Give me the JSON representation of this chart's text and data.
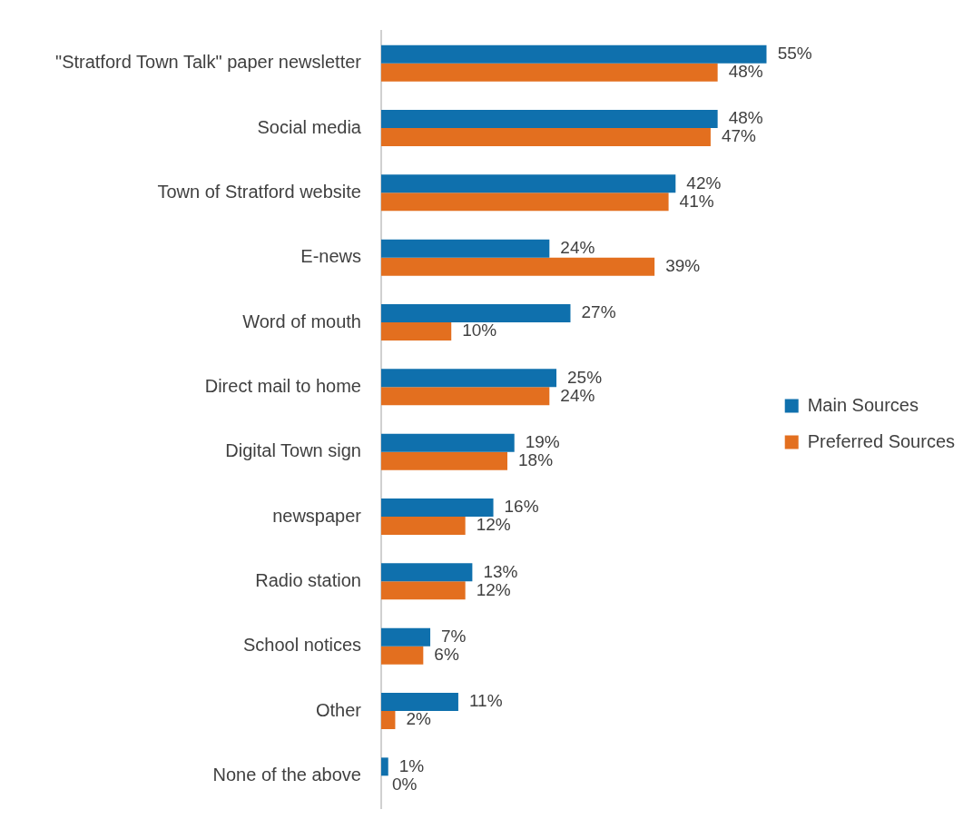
{
  "chart_data": {
    "type": "bar",
    "orientation": "horizontal",
    "grid": false,
    "legend": "right",
    "categories": [
      "\"Stratford Town Talk\" paper newsletter",
      "Social media",
      "Town of Stratford website",
      "E-news",
      "Word of mouth",
      "Direct mail to home",
      "Digital Town sign",
      "newspaper",
      "Radio station",
      "School notices",
      "Other",
      "None of the above"
    ],
    "series": [
      {
        "name": "Main Sources",
        "color": "#0f70ad",
        "values": [
          55,
          48,
          42,
          24,
          27,
          25,
          19,
          16,
          13,
          7,
          11,
          1
        ],
        "value_labels": [
          "55%",
          "48%",
          "42%",
          "24%",
          "27%",
          "25%",
          "19%",
          "16%",
          "13%",
          "7%",
          "11%",
          "1%"
        ]
      },
      {
        "name": "Preferred Sources",
        "color": "#e36f1f",
        "values": [
          48,
          47,
          41,
          39,
          10,
          24,
          18,
          12,
          12,
          6,
          2,
          0
        ],
        "value_labels": [
          "48%",
          "47%",
          "41%",
          "39%",
          "10%",
          "24%",
          "18%",
          "12%",
          "12%",
          "6%",
          "2%",
          "0%"
        ]
      }
    ]
  }
}
